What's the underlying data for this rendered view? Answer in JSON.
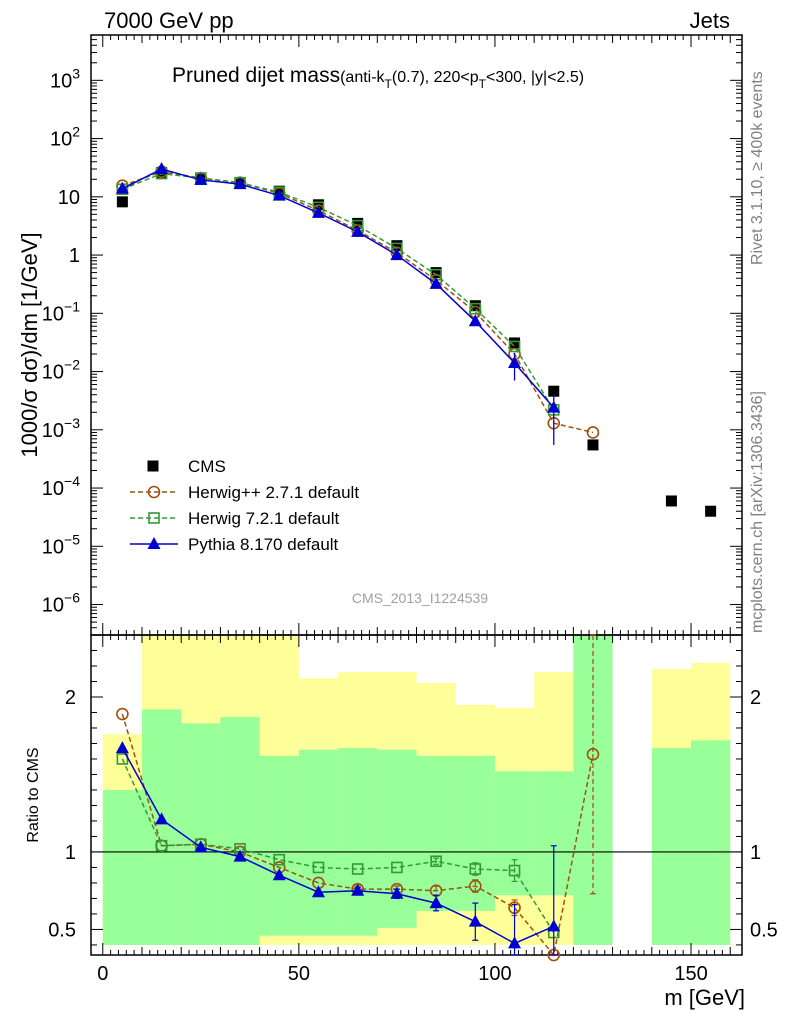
{
  "header": {
    "left": "7000 GeV pp",
    "right": "Jets"
  },
  "plot_title": {
    "main": "Pruned dijet mass",
    "sub_parts": [
      "(anti-k",
      "T",
      "(0.7), 220<p",
      "T",
      "<300, |y|<2.5)"
    ]
  },
  "side_labels": {
    "rivet": "Rivet 3.1.10, ≥ 400k events",
    "mcplots": "mcplots.cern.ch [arXiv:1306.3436]"
  },
  "watermark": "CMS_2013_I1224539",
  "axes": {
    "ylabel_main": "1000/σ dσ)/dm [1/GeV]",
    "ylabel_ratio": "Ratio to CMS",
    "xlabel": "m [GeV]"
  },
  "chart_data": {
    "type": "scatter",
    "x_label": "m [GeV]",
    "xlim": [
      -3,
      163
    ],
    "main": {
      "ylabel": "1000/σ dσ)/dm [1/GeV]",
      "yscale": "log",
      "ylim": [
        3e-07,
        6000
      ],
      "ytick_labels": [
        {
          "v": 1e-06,
          "mant": "10",
          "exp": "−6"
        },
        {
          "v": 1e-05,
          "mant": "10",
          "exp": "−5"
        },
        {
          "v": 0.0001,
          "mant": "10",
          "exp": "−4"
        },
        {
          "v": 0.001,
          "mant": "10",
          "exp": "−3"
        },
        {
          "v": 0.01,
          "mant": "10",
          "exp": "−2"
        },
        {
          "v": 0.1,
          "mant": "10",
          "exp": "−1"
        },
        {
          "v": 1,
          "mant": "1",
          "exp": ""
        },
        {
          "v": 10,
          "mant": "10",
          "exp": ""
        },
        {
          "v": 100,
          "mant": "10",
          "exp": "2"
        },
        {
          "v": 1000,
          "mant": "10",
          "exp": "3"
        }
      ]
    },
    "ratio": {
      "ylabel": "Ratio to CMS",
      "ylim": [
        0.335,
        2.4
      ],
      "ytick_labels": [
        {
          "v": 0.5,
          "label": "0.5"
        },
        {
          "v": 1,
          "label": "1"
        },
        {
          "v": 2,
          "label": "2"
        }
      ]
    },
    "xtick_labels": [
      {
        "v": 0,
        "label": "0"
      },
      {
        "v": 50,
        "label": "50"
      },
      {
        "v": 100,
        "label": "100"
      },
      {
        "v": 150,
        "label": "150"
      }
    ],
    "bin_edges": [
      0,
      10,
      20,
      30,
      40,
      50,
      60,
      70,
      80,
      90,
      100,
      110,
      120,
      130,
      140,
      150,
      160
    ],
    "data": {
      "name": "CMS",
      "x": [
        5,
        15,
        25,
        35,
        45,
        55,
        65,
        75,
        85,
        95,
        105,
        115,
        125,
        145,
        155
      ],
      "y": [
        8.2,
        26,
        20,
        17,
        12.5,
        7.3,
        3.5,
        1.45,
        0.5,
        0.135,
        0.031,
        0.0046,
        0.00055,
        6e-05,
        4e-05
      ],
      "band_inner": [
        [
          0.4,
          1.4
        ],
        [
          0.4,
          1.92
        ],
        [
          0.4,
          1.83
        ],
        [
          0.4,
          1.87
        ],
        [
          0.46,
          1.62
        ],
        [
          0.46,
          1.66
        ],
        [
          0.46,
          1.67
        ],
        [
          0.51,
          1.66
        ],
        [
          0.62,
          1.62
        ],
        [
          0.62,
          1.62
        ],
        [
          0.72,
          1.52
        ],
        [
          0.72,
          1.52
        ],
        [
          0.4,
          2.4
        ],
        null,
        [
          0.4,
          1.67
        ],
        [
          0.4,
          1.72
        ]
      ],
      "band_outer": [
        [
          0.4,
          1.76
        ],
        [
          0.4,
          2.4
        ],
        [
          0.4,
          2.4
        ],
        [
          0.4,
          2.4
        ],
        [
          0.4,
          2.4
        ],
        [
          0.4,
          2.12
        ],
        [
          0.4,
          2.16
        ],
        [
          0.4,
          2.16
        ],
        [
          0.4,
          2.09
        ],
        [
          0.4,
          1.95
        ],
        [
          0.4,
          1.93
        ],
        [
          0.4,
          2.16
        ],
        [
          0.4,
          2.4
        ],
        null,
        [
          0.4,
          2.18
        ],
        [
          0.4,
          2.22
        ]
      ]
    },
    "series": [
      {
        "name": "Herwig++ 2.7.1 default",
        "color": "#a05010",
        "marker": "open-circle",
        "line": "dashed",
        "x": [
          5,
          15,
          25,
          35,
          45,
          55,
          65,
          75,
          85,
          95,
          105,
          115,
          125
        ],
        "y": [
          15.5,
          27,
          21,
          17.5,
          11.5,
          5.8,
          2.65,
          1.1,
          0.37,
          0.105,
          0.02,
          0.0013,
          0.0009
        ],
        "ratio": [
          1.89,
          1.04,
          1.05,
          1.0,
          0.9,
          0.8,
          0.76,
          0.76,
          0.75,
          0.78,
          0.64,
          0.29,
          1.63
        ],
        "ratio_err": [
          0,
          0,
          0,
          0,
          0,
          0,
          0.02,
          0.02,
          0.03,
          0.04,
          0.05,
          0,
          0.9
        ]
      },
      {
        "name": "Herwig 7.2.1 default",
        "color": "#339933",
        "marker": "open-square",
        "line": "dashed",
        "x": [
          5,
          15,
          25,
          35,
          45,
          55,
          65,
          75,
          85,
          95,
          105,
          115
        ],
        "y": [
          13.5,
          25,
          21,
          17.5,
          12,
          6.6,
          3.2,
          1.3,
          0.46,
          0.12,
          0.027,
          0.0022
        ],
        "ratio": [
          1.6,
          1.04,
          1.05,
          1.02,
          0.95,
          0.9,
          0.89,
          0.9,
          0.94,
          0.89,
          0.88,
          0.48
        ],
        "ratio_err": [
          0,
          0,
          0,
          0,
          0,
          0,
          0,
          0,
          0.02,
          0.04,
          0.07,
          0
        ]
      },
      {
        "name": "Pythia 8.170 default",
        "color": "#0000d0",
        "marker": "filled-triangle",
        "line": "solid",
        "x": [
          5,
          15,
          25,
          35,
          45,
          55,
          65,
          75,
          85,
          95,
          105,
          115
        ],
        "y": [
          13.8,
          30,
          19.5,
          16.5,
          10.5,
          5.3,
          2.5,
          1.0,
          0.32,
          0.073,
          0.014,
          0.0024
        ],
        "y_err": [
          0,
          0,
          0,
          0,
          0,
          0,
          0,
          0,
          0,
          0,
          0.007,
          0.00185
        ],
        "ratio": [
          1.67,
          1.21,
          1.03,
          0.97,
          0.85,
          0.74,
          0.75,
          0.73,
          0.67,
          0.55,
          0.41,
          0.52
        ],
        "ratio_err": [
          0,
          0,
          0,
          0,
          0,
          0,
          0.02,
          0.03,
          0.05,
          0.12,
          0.25,
          0.52
        ]
      }
    ]
  }
}
